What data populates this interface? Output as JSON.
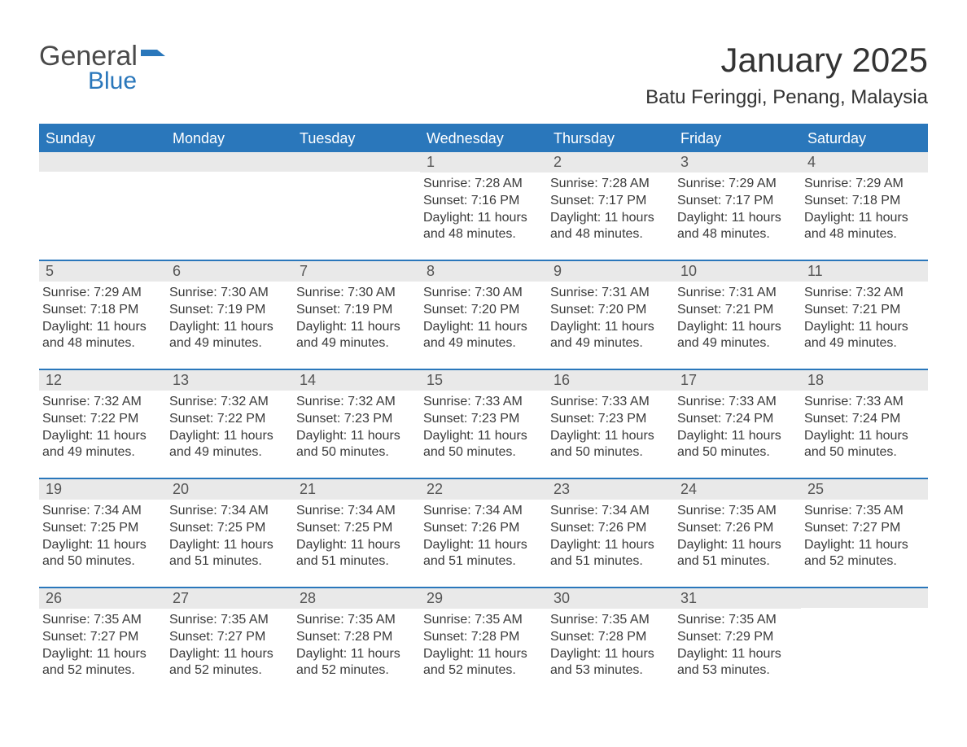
{
  "logo": {
    "text1": "General",
    "text2": "Blue",
    "flag_color": "#2a77bb"
  },
  "title": "January 2025",
  "subtitle": "Batu Feringgi, Penang, Malaysia",
  "accent_color": "#2a77bb",
  "header_bg": "#2a77bb",
  "header_text": "#ffffff",
  "daynum_bg": "#e9e9e9",
  "text_color": "#3a3a3a",
  "days_of_week": [
    "Sunday",
    "Monday",
    "Tuesday",
    "Wednesday",
    "Thursday",
    "Friday",
    "Saturday"
  ],
  "weeks": [
    [
      null,
      null,
      null,
      {
        "n": "1",
        "sunrise": "7:28 AM",
        "sunset": "7:16 PM",
        "daylight": "11 hours and 48 minutes."
      },
      {
        "n": "2",
        "sunrise": "7:28 AM",
        "sunset": "7:17 PM",
        "daylight": "11 hours and 48 minutes."
      },
      {
        "n": "3",
        "sunrise": "7:29 AM",
        "sunset": "7:17 PM",
        "daylight": "11 hours and 48 minutes."
      },
      {
        "n": "4",
        "sunrise": "7:29 AM",
        "sunset": "7:18 PM",
        "daylight": "11 hours and 48 minutes."
      }
    ],
    [
      {
        "n": "5",
        "sunrise": "7:29 AM",
        "sunset": "7:18 PM",
        "daylight": "11 hours and 48 minutes."
      },
      {
        "n": "6",
        "sunrise": "7:30 AM",
        "sunset": "7:19 PM",
        "daylight": "11 hours and 49 minutes."
      },
      {
        "n": "7",
        "sunrise": "7:30 AM",
        "sunset": "7:19 PM",
        "daylight": "11 hours and 49 minutes."
      },
      {
        "n": "8",
        "sunrise": "7:30 AM",
        "sunset": "7:20 PM",
        "daylight": "11 hours and 49 minutes."
      },
      {
        "n": "9",
        "sunrise": "7:31 AM",
        "sunset": "7:20 PM",
        "daylight": "11 hours and 49 minutes."
      },
      {
        "n": "10",
        "sunrise": "7:31 AM",
        "sunset": "7:21 PM",
        "daylight": "11 hours and 49 minutes."
      },
      {
        "n": "11",
        "sunrise": "7:32 AM",
        "sunset": "7:21 PM",
        "daylight": "11 hours and 49 minutes."
      }
    ],
    [
      {
        "n": "12",
        "sunrise": "7:32 AM",
        "sunset": "7:22 PM",
        "daylight": "11 hours and 49 minutes."
      },
      {
        "n": "13",
        "sunrise": "7:32 AM",
        "sunset": "7:22 PM",
        "daylight": "11 hours and 49 minutes."
      },
      {
        "n": "14",
        "sunrise": "7:32 AM",
        "sunset": "7:23 PM",
        "daylight": "11 hours and 50 minutes."
      },
      {
        "n": "15",
        "sunrise": "7:33 AM",
        "sunset": "7:23 PM",
        "daylight": "11 hours and 50 minutes."
      },
      {
        "n": "16",
        "sunrise": "7:33 AM",
        "sunset": "7:23 PM",
        "daylight": "11 hours and 50 minutes."
      },
      {
        "n": "17",
        "sunrise": "7:33 AM",
        "sunset": "7:24 PM",
        "daylight": "11 hours and 50 minutes."
      },
      {
        "n": "18",
        "sunrise": "7:33 AM",
        "sunset": "7:24 PM",
        "daylight": "11 hours and 50 minutes."
      }
    ],
    [
      {
        "n": "19",
        "sunrise": "7:34 AM",
        "sunset": "7:25 PM",
        "daylight": "11 hours and 50 minutes."
      },
      {
        "n": "20",
        "sunrise": "7:34 AM",
        "sunset": "7:25 PM",
        "daylight": "11 hours and 51 minutes."
      },
      {
        "n": "21",
        "sunrise": "7:34 AM",
        "sunset": "7:25 PM",
        "daylight": "11 hours and 51 minutes."
      },
      {
        "n": "22",
        "sunrise": "7:34 AM",
        "sunset": "7:26 PM",
        "daylight": "11 hours and 51 minutes."
      },
      {
        "n": "23",
        "sunrise": "7:34 AM",
        "sunset": "7:26 PM",
        "daylight": "11 hours and 51 minutes."
      },
      {
        "n": "24",
        "sunrise": "7:35 AM",
        "sunset": "7:26 PM",
        "daylight": "11 hours and 51 minutes."
      },
      {
        "n": "25",
        "sunrise": "7:35 AM",
        "sunset": "7:27 PM",
        "daylight": "11 hours and 52 minutes."
      }
    ],
    [
      {
        "n": "26",
        "sunrise": "7:35 AM",
        "sunset": "7:27 PM",
        "daylight": "11 hours and 52 minutes."
      },
      {
        "n": "27",
        "sunrise": "7:35 AM",
        "sunset": "7:27 PM",
        "daylight": "11 hours and 52 minutes."
      },
      {
        "n": "28",
        "sunrise": "7:35 AM",
        "sunset": "7:28 PM",
        "daylight": "11 hours and 52 minutes."
      },
      {
        "n": "29",
        "sunrise": "7:35 AM",
        "sunset": "7:28 PM",
        "daylight": "11 hours and 52 minutes."
      },
      {
        "n": "30",
        "sunrise": "7:35 AM",
        "sunset": "7:28 PM",
        "daylight": "11 hours and 53 minutes."
      },
      {
        "n": "31",
        "sunrise": "7:35 AM",
        "sunset": "7:29 PM",
        "daylight": "11 hours and 53 minutes."
      },
      null
    ]
  ],
  "labels": {
    "sunrise": "Sunrise:",
    "sunset": "Sunset:",
    "daylight": "Daylight:"
  }
}
